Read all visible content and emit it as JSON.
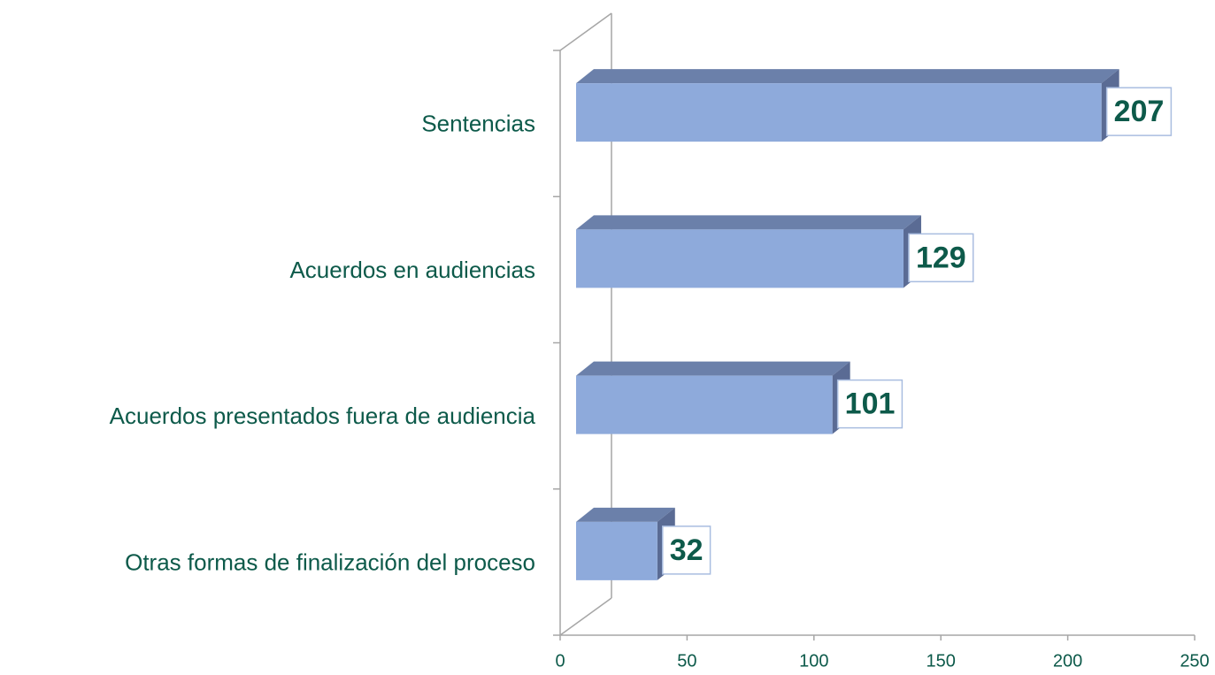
{
  "chart_data": {
    "type": "bar3d",
    "orientation": "horizontal",
    "categories": [
      "Sentencias",
      "Acuerdos en audiencias",
      "Acuerdos presentados fuera de audiencia",
      "Otras formas de finalización del proceso"
    ],
    "values": [
      207,
      129,
      101,
      32
    ],
    "color": "#8eaadb",
    "xlim": [
      0,
      250
    ],
    "xticks": [
      0,
      50,
      100,
      150,
      200,
      250
    ]
  }
}
